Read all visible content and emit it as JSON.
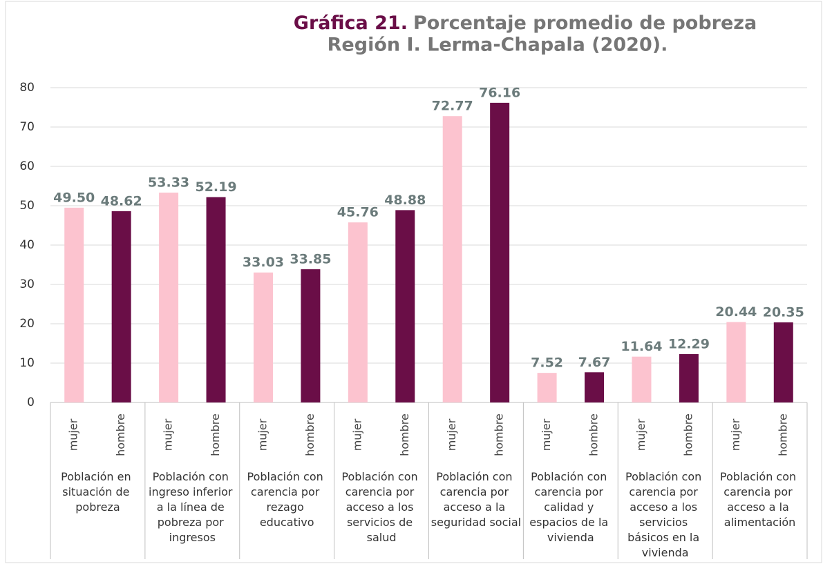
{
  "chart_data": {
    "type": "bar",
    "title": {
      "label": "Gráfica 21.",
      "lines": [
        "Porcentaje promedio de pobreza",
        "Región I. Lerma-Chapala (2020)."
      ]
    },
    "categories": [
      "Población en situación de pobreza",
      "Población con ingreso inferior a la línea de pobreza por ingresos",
      "Población con carencia por rezago educativo",
      "Población con carencia por acceso a los servicios de salud",
      "Población con carencia por acceso a la seguridad social",
      "Población con carencia por calidad y espacios de la vivienda",
      "Población con carencia por acceso a los servicios básicos en la vivienda",
      "Población con carencia por acceso a la alimentación"
    ],
    "series": [
      {
        "name": "mujer",
        "color": "#fcc3cf",
        "values": [
          49.5,
          53.33,
          33.03,
          45.76,
          72.77,
          7.52,
          11.64,
          20.44
        ],
        "value_labels": [
          "49.50",
          "53.33",
          "33.03",
          "45.76",
          "72.77",
          "7.52",
          "11.64",
          "20.44"
        ]
      },
      {
        "name": "hombre",
        "color": "#6a0e47",
        "values": [
          48.62,
          52.19,
          33.85,
          48.88,
          76.16,
          7.67,
          12.29,
          20.35
        ],
        "value_labels": [
          "48.62",
          "52.19",
          "33.85",
          "48.88",
          "76.16",
          "7.67",
          "12.29",
          "20.35"
        ]
      }
    ],
    "ylim": [
      0,
      80
    ],
    "yticks": [
      0,
      10,
      20,
      30,
      40,
      50,
      60,
      70,
      80
    ],
    "grid": true
  }
}
